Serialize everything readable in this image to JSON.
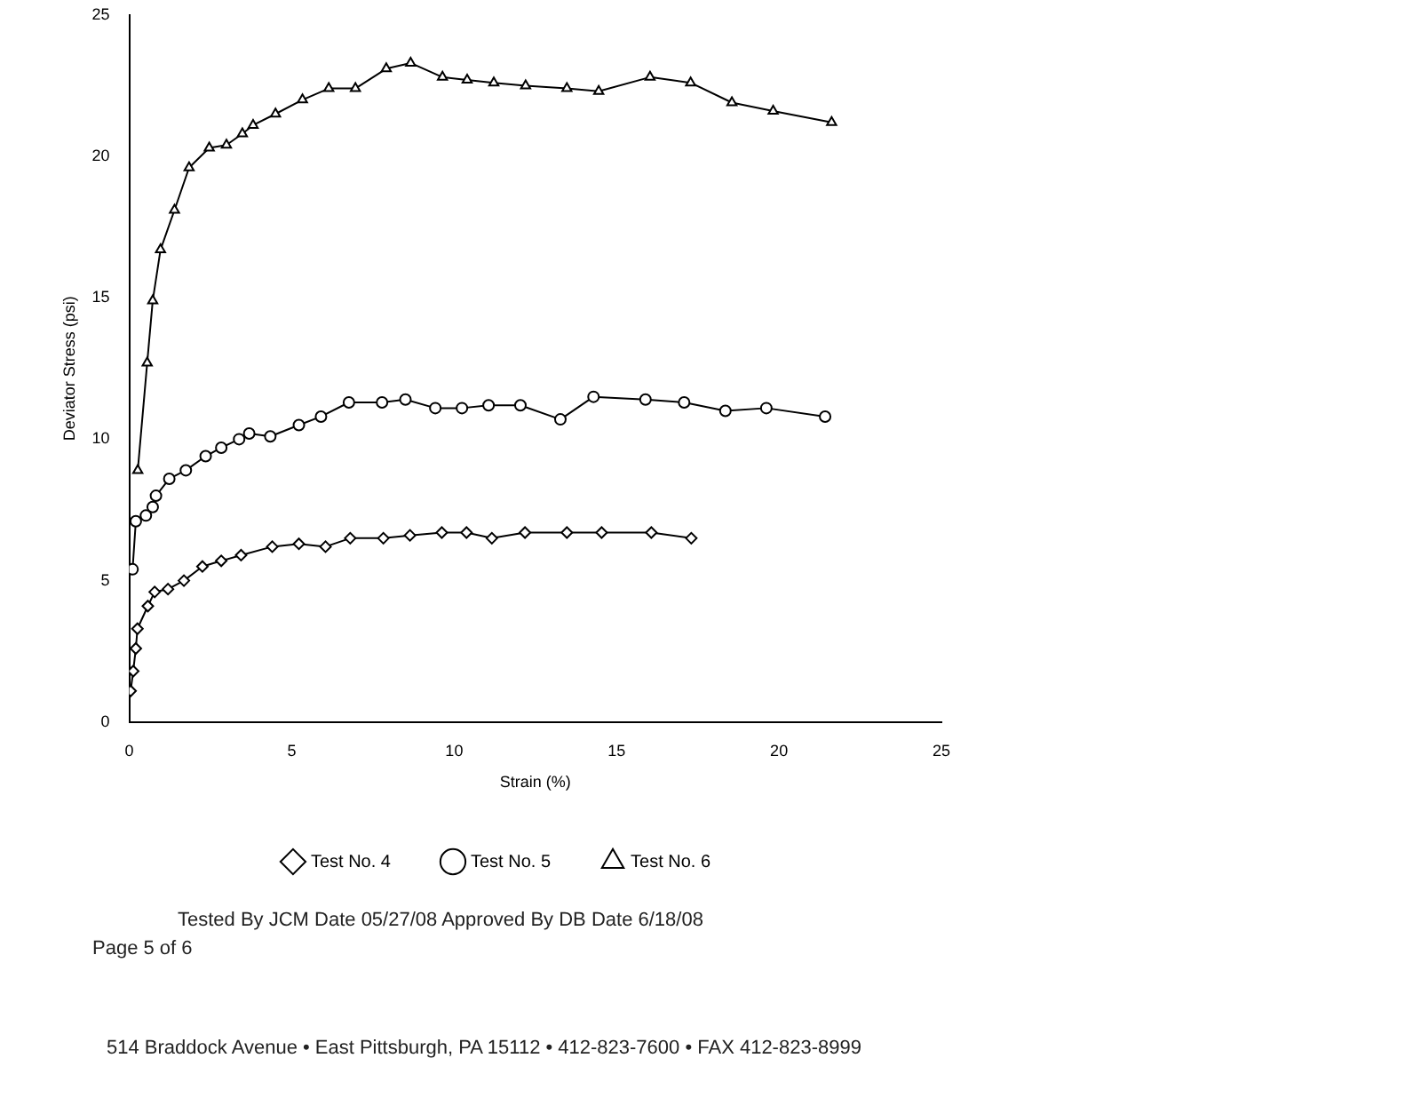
{
  "chart_data": {
    "type": "line",
    "xlabel": "Strain (%)",
    "ylabel": "Deviator Stress (psi)",
    "xlim": [
      0,
      25
    ],
    "xticks": [
      0,
      5,
      10,
      15,
      20,
      25
    ],
    "ylim": [
      0,
      25
    ],
    "yticks": [
      0,
      5,
      10,
      15,
      20,
      25
    ],
    "grid": false,
    "legend": "bottom",
    "line_style": "solid",
    "series": [
      {
        "name": "Test No. 4",
        "color": "#000000",
        "marker": "diamond",
        "x": [
          0.04,
          0.12,
          0.2,
          0.25,
          0.57,
          0.78,
          1.19,
          1.68,
          2.25,
          2.83,
          3.44,
          4.4,
          5.22,
          6.04,
          6.8,
          7.82,
          8.64,
          9.62,
          10.38,
          11.16,
          12.18,
          13.47,
          14.54,
          16.07,
          17.3
        ],
        "values": [
          1.1,
          1.8,
          2.6,
          3.3,
          4.1,
          4.6,
          4.7,
          5.0,
          5.5,
          5.7,
          5.9,
          6.2,
          6.3,
          6.2,
          6.5,
          6.5,
          6.6,
          6.7,
          6.7,
          6.5,
          6.7,
          6.7,
          6.7,
          6.7,
          6.5
        ]
      },
      {
        "name": "Test No. 5",
        "color": "#000000",
        "marker": "circle",
        "x": [
          0.1,
          0.2,
          0.51,
          0.72,
          0.82,
          1.23,
          1.74,
          2.35,
          2.83,
          3.38,
          3.69,
          4.34,
          5.22,
          5.9,
          6.76,
          7.78,
          8.5,
          9.42,
          10.24,
          11.06,
          12.04,
          13.27,
          14.29,
          15.89,
          17.08,
          18.35,
          19.61,
          21.42
        ],
        "values": [
          5.4,
          7.1,
          7.3,
          7.6,
          8.0,
          8.6,
          8.9,
          9.4,
          9.7,
          10.0,
          10.2,
          10.1,
          10.5,
          10.8,
          11.3,
          11.3,
          11.4,
          11.1,
          11.1,
          11.2,
          11.2,
          10.7,
          11.5,
          11.4,
          11.3,
          11.0,
          11.1,
          10.8
        ]
      },
      {
        "name": "Test No. 6",
        "color": "#000000",
        "marker": "triangle",
        "x": [
          0.26,
          0.55,
          0.72,
          0.96,
          1.39,
          1.84,
          2.46,
          2.99,
          3.48,
          3.81,
          4.5,
          5.33,
          6.14,
          6.96,
          7.91,
          8.66,
          9.64,
          10.4,
          11.22,
          12.2,
          13.47,
          14.45,
          16.03,
          17.28,
          18.55,
          19.82,
          21.62
        ],
        "values": [
          8.9,
          12.7,
          14.9,
          16.7,
          18.1,
          19.6,
          20.3,
          20.4,
          20.8,
          21.1,
          21.5,
          22.0,
          22.4,
          22.4,
          23.1,
          23.3,
          22.8,
          22.7,
          22.6,
          22.5,
          22.4,
          22.3,
          22.8,
          22.6,
          21.9,
          21.6,
          21.2
        ]
      }
    ],
    "annotations": [
      "Tested By JCM Date 05/27/08 Approved By DB Date 6/18/08",
      "Page 5 of 6",
      "514 Braddock Avenue • East Pittsburgh, PA 15112 • 412-823-7600 • FAX 412-823-8999"
    ]
  }
}
